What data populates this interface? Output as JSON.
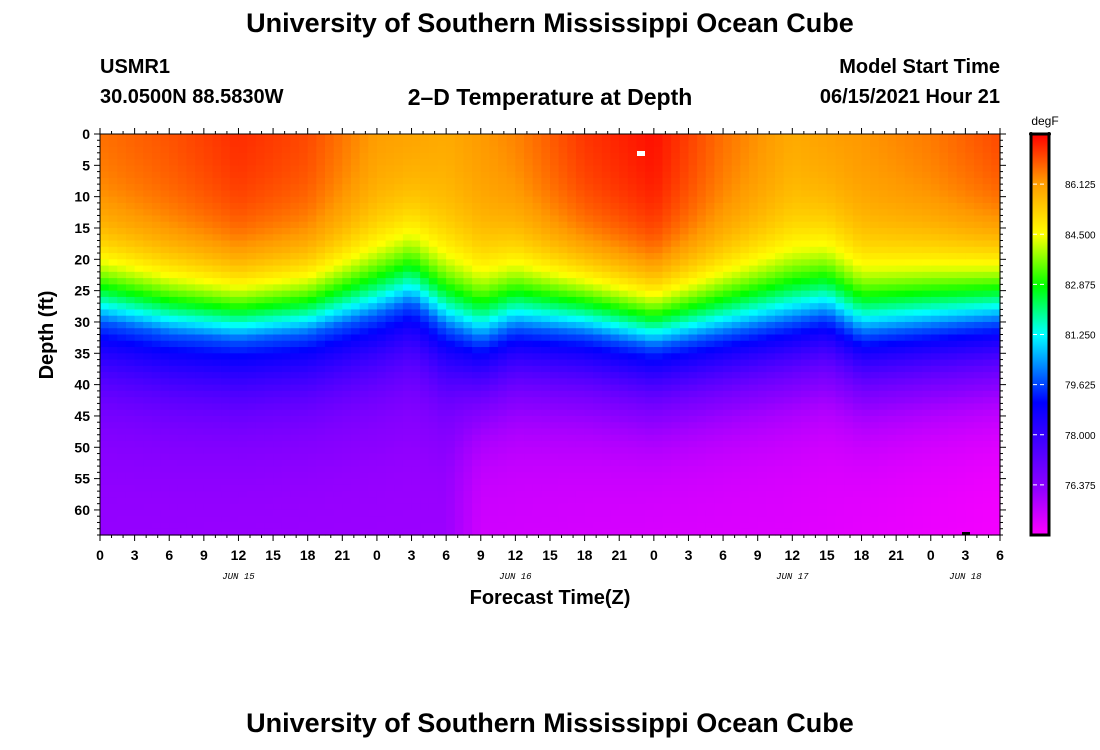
{
  "header": {
    "title": "University of Southern Mississippi Ocean Cube",
    "station": "USMR1",
    "coords": "30.0500N  88.5830W",
    "model_start_label": "Model Start Time",
    "model_start_value": "06/15/2021 Hour 21"
  },
  "footer": {
    "title": "University of Southern Mississippi Ocean Cube"
  },
  "chart_data": {
    "type": "heatmap",
    "title": "2–D Temperature at Depth",
    "xlabel": "Forecast Time(Z)",
    "ylabel": "Depth (ft)",
    "x_range_hours": [
      0,
      78
    ],
    "x_tick_labels": [
      "0",
      "3",
      "6",
      "9",
      "12",
      "15",
      "18",
      "21",
      "0",
      "3",
      "6",
      "9",
      "12",
      "15",
      "18",
      "21",
      "0",
      "3",
      "6",
      "9",
      "12",
      "15",
      "18",
      "21",
      "0",
      "3",
      "6"
    ],
    "date_labels": [
      {
        "hour": 12,
        "label": "JUN 15"
      },
      {
        "hour": 36,
        "label": "JUN 16"
      },
      {
        "hour": 60,
        "label": "JUN 17"
      },
      {
        "hour": 75,
        "label": "JUN 18"
      }
    ],
    "y_range": [
      0,
      64
    ],
    "y_ticks": [
      0,
      5,
      10,
      15,
      20,
      25,
      30,
      35,
      40,
      45,
      50,
      55,
      60
    ],
    "colorbar": {
      "unit": "degF",
      "min": 74.75,
      "max": 87.75,
      "ticks": [
        "86.125",
        "84.500",
        "82.875",
        "81.250",
        "79.625",
        "78.000",
        "76.375"
      ]
    },
    "colors": {
      "c1": "#ff00ff",
      "c2": "#8c00ff",
      "c3": "#0000ff",
      "c4": "#00ffff",
      "c5": "#00ff00",
      "c6": "#ffff00",
      "c7": "#ff9900",
      "c8": "#ff0000"
    },
    "thermocline_depth_ft": {
      "hours": [
        0,
        6,
        12,
        18,
        24,
        27,
        30,
        33,
        36,
        42,
        48,
        54,
        60,
        63,
        66,
        72,
        78
      ],
      "depths": [
        30,
        32,
        33,
        32,
        29,
        27,
        31,
        33,
        31,
        32,
        34,
        32,
        30,
        29,
        32,
        31,
        30
      ]
    },
    "surface_temp_degF": {
      "hours": [
        0,
        6,
        12,
        18,
        24,
        30,
        36,
        42,
        48,
        54,
        60,
        66,
        72,
        78
      ],
      "values": [
        86.6,
        86.9,
        87.3,
        87.0,
        86.1,
        85.9,
        86.4,
        87.2,
        87.6,
        86.6,
        85.9,
        86.2,
        86.5,
        87.0
      ]
    },
    "bottom_temp_degF": {
      "hours": [
        0,
        30,
        33,
        60,
        72,
        78
      ],
      "values": [
        76.2,
        76.1,
        75.4,
        75.2,
        75.0,
        74.9
      ]
    }
  }
}
